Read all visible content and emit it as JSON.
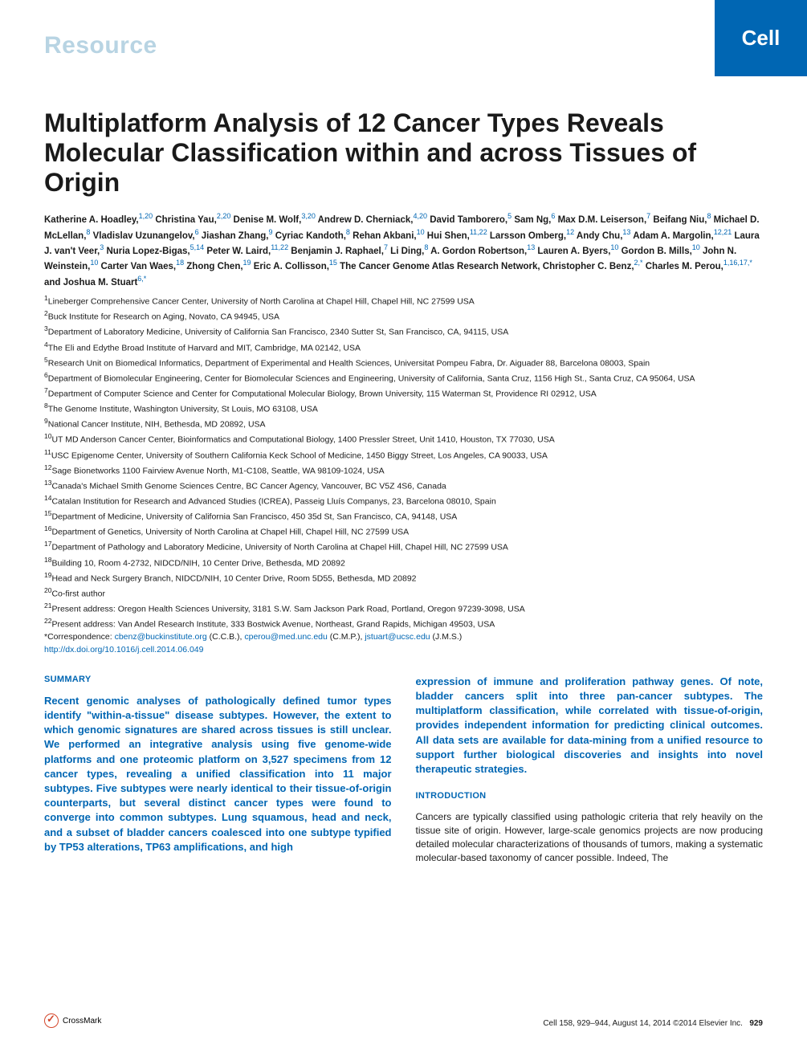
{
  "header": {
    "section_label": "Resource",
    "journal_badge": "Cell"
  },
  "title": "Multiplatform Analysis of 12 Cancer Types Reveals Molecular Classification within and across Tissues of Origin",
  "authors": [
    {
      "name": "Katherine A. Hoadley,",
      "aff": "1,20"
    },
    {
      "name": " Christina Yau,",
      "aff": "2,20"
    },
    {
      "name": " Denise M. Wolf,",
      "aff": "3,20"
    },
    {
      "name": " Andrew D. Cherniack,",
      "aff": "4,20"
    },
    {
      "name": " David Tamborero,",
      "aff": "5"
    },
    {
      "name": " Sam Ng,",
      "aff": "6"
    },
    {
      "name": " Max D.M. Leiserson,",
      "aff": "7"
    },
    {
      "name": " Beifang Niu,",
      "aff": "8"
    },
    {
      "name": " Michael D. McLellan,",
      "aff": "8"
    },
    {
      "name": " Vladislav Uzunangelov,",
      "aff": "6"
    },
    {
      "name": " Jiashan Zhang,",
      "aff": "9"
    },
    {
      "name": " Cyriac Kandoth,",
      "aff": "8"
    },
    {
      "name": " Rehan Akbani,",
      "aff": "10"
    },
    {
      "name": " Hui Shen,",
      "aff": "11,22"
    },
    {
      "name": " Larsson Omberg,",
      "aff": "12"
    },
    {
      "name": " Andy Chu,",
      "aff": "13"
    },
    {
      "name": " Adam A. Margolin,",
      "aff": "12,21"
    },
    {
      "name": " Laura J. van't Veer,",
      "aff": "3"
    },
    {
      "name": " Nuria Lopez-Bigas,",
      "aff": "5,14"
    },
    {
      "name": " Peter W. Laird,",
      "aff": "11,22"
    },
    {
      "name": " Benjamin J. Raphael,",
      "aff": "7"
    },
    {
      "name": " Li Ding,",
      "aff": "8"
    },
    {
      "name": " A. Gordon Robertson,",
      "aff": "13"
    },
    {
      "name": " Lauren A. Byers,",
      "aff": "10"
    },
    {
      "name": " Gordon B. Mills,",
      "aff": "10"
    },
    {
      "name": " John N. Weinstein,",
      "aff": "10"
    },
    {
      "name": " Carter Van Waes,",
      "aff": "18"
    },
    {
      "name": " Zhong Chen,",
      "aff": "19"
    },
    {
      "name": " Eric A. Collisson,",
      "aff": "15"
    },
    {
      "name": " The Cancer Genome Atlas Research Network, Christopher C. Benz,",
      "aff": "2,*"
    },
    {
      "name": " Charles M. Perou,",
      "aff": "1,16,17,*"
    },
    {
      "name": " and Joshua M. Stuart",
      "aff": "6,*"
    }
  ],
  "affiliations": [
    {
      "n": "1",
      "text": "Lineberger Comprehensive Cancer Center, University of North Carolina at Chapel Hill, Chapel Hill, NC 27599 USA"
    },
    {
      "n": "2",
      "text": "Buck Institute for Research on Aging, Novato, CA 94945, USA"
    },
    {
      "n": "3",
      "text": "Department of Laboratory Medicine, University of California San Francisco, 2340 Sutter St, San Francisco, CA, 94115, USA"
    },
    {
      "n": "4",
      "text": "The Eli and Edythe Broad Institute of Harvard and MIT, Cambridge, MA 02142, USA"
    },
    {
      "n": "5",
      "text": "Research Unit on Biomedical Informatics, Department of Experimental and Health Sciences, Universitat Pompeu Fabra, Dr. Aiguader 88, Barcelona 08003, Spain"
    },
    {
      "n": "6",
      "text": "Department of Biomolecular Engineering, Center for Biomolecular Sciences and Engineering, University of California, Santa Cruz, 1156 High St., Santa Cruz, CA 95064, USA"
    },
    {
      "n": "7",
      "text": "Department of Computer Science and Center for Computational Molecular Biology, Brown University, 115 Waterman St, Providence RI 02912, USA"
    },
    {
      "n": "8",
      "text": "The Genome Institute, Washington University, St Louis, MO 63108, USA"
    },
    {
      "n": "9",
      "text": "National Cancer Institute, NIH, Bethesda, MD 20892, USA"
    },
    {
      "n": "10",
      "text": "UT MD Anderson Cancer Center, Bioinformatics and Computational Biology, 1400 Pressler Street, Unit 1410, Houston, TX 77030, USA"
    },
    {
      "n": "11",
      "text": "USC Epigenome Center, University of Southern California Keck School of Medicine, 1450 Biggy Street, Los Angeles, CA 90033, USA"
    },
    {
      "n": "12",
      "text": "Sage Bionetworks 1100 Fairview Avenue North, M1-C108, Seattle, WA 98109-1024, USA"
    },
    {
      "n": "13",
      "text": "Canada's Michael Smith Genome Sciences Centre, BC Cancer Agency, Vancouver, BC V5Z 4S6, Canada"
    },
    {
      "n": "14",
      "text": "Catalan Institution for Research and Advanced Studies (ICREA), Passeig Lluís Companys, 23, Barcelona 08010, Spain"
    },
    {
      "n": "15",
      "text": "Department of Medicine, University of California San Francisco, 450 35d St, San Francisco, CA, 94148, USA"
    },
    {
      "n": "16",
      "text": "Department of Genetics, University of North Carolina at Chapel Hill, Chapel Hill, NC 27599 USA"
    },
    {
      "n": "17",
      "text": "Department of Pathology and Laboratory Medicine, University of North Carolina at Chapel Hill, Chapel Hill, NC 27599 USA"
    },
    {
      "n": "18",
      "text": "Building 10, Room 4-2732, NIDCD/NIH, 10 Center Drive, Bethesda, MD 20892"
    },
    {
      "n": "19",
      "text": "Head and Neck Surgery Branch, NIDCD/NIH, 10 Center Drive, Room 5D55, Bethesda, MD 20892"
    },
    {
      "n": "20",
      "text": "Co-first author"
    },
    {
      "n": "21",
      "text": "Present address: Oregon Health Sciences University, 3181 S.W. Sam Jackson Park Road, Portland, Oregon 97239-3098, USA"
    },
    {
      "n": "22",
      "text": "Present address: Van Andel Research Institute, 333 Bostwick Avenue, Northeast, Grand Rapids, Michigan 49503, USA"
    }
  ],
  "correspondence": {
    "label": "*Correspondence: ",
    "emails": [
      "cbenz@buckinstitute.org",
      "cperou@med.unc.edu",
      "jstuart@ucsc.edu"
    ],
    "names": [
      " (C.C.B.), ",
      " (C.M.P.), ",
      " (J.M.S.)"
    ]
  },
  "doi": "http://dx.doi.org/10.1016/j.cell.2014.06.049",
  "summary": {
    "heading": "SUMMARY",
    "text_left": "Recent genomic analyses of pathologically defined tumor types identify \"within-a-tissue\" disease subtypes. However, the extent to which genomic signatures are shared across tissues is still unclear. We performed an integrative analysis using five genome-wide platforms and one proteomic platform on 3,527 specimens from 12 cancer types, revealing a unified classification into 11 major subtypes. Five subtypes were nearly identical to their tissue-of-origin counterparts, but several distinct cancer types were found to converge into common subtypes. Lung squamous, head and neck, and a subset of bladder cancers coalesced into one subtype typified by TP53 alterations, TP63 amplifications, and high",
    "text_right": "expression of immune and proliferation pathway genes. Of note, bladder cancers split into three pan-cancer subtypes. The multiplatform classification, while correlated with tissue-of-origin, provides independent information for predicting clinical outcomes. All data sets are available for data-mining from a unified resource to support further biological discoveries and insights into novel therapeutic strategies."
  },
  "introduction": {
    "heading": "INTRODUCTION",
    "text": "Cancers are typically classified using pathologic criteria that rely heavily on the tissue site of origin. However, large-scale genomics projects are now producing detailed molecular characterizations of thousands of tumors, making a systematic molecular-based taxonomy of cancer possible. Indeed, The"
  },
  "footer": {
    "crossmark": "CrossMark",
    "citation": "Cell 158, 929–944, August 14, 2014 ©2014 Elsevier Inc.",
    "page": "929"
  },
  "colors": {
    "brand_blue": "#0066b3",
    "light_blue": "#b8d4e3",
    "text": "#1a1a1a",
    "crossmark": "#d4472c"
  }
}
